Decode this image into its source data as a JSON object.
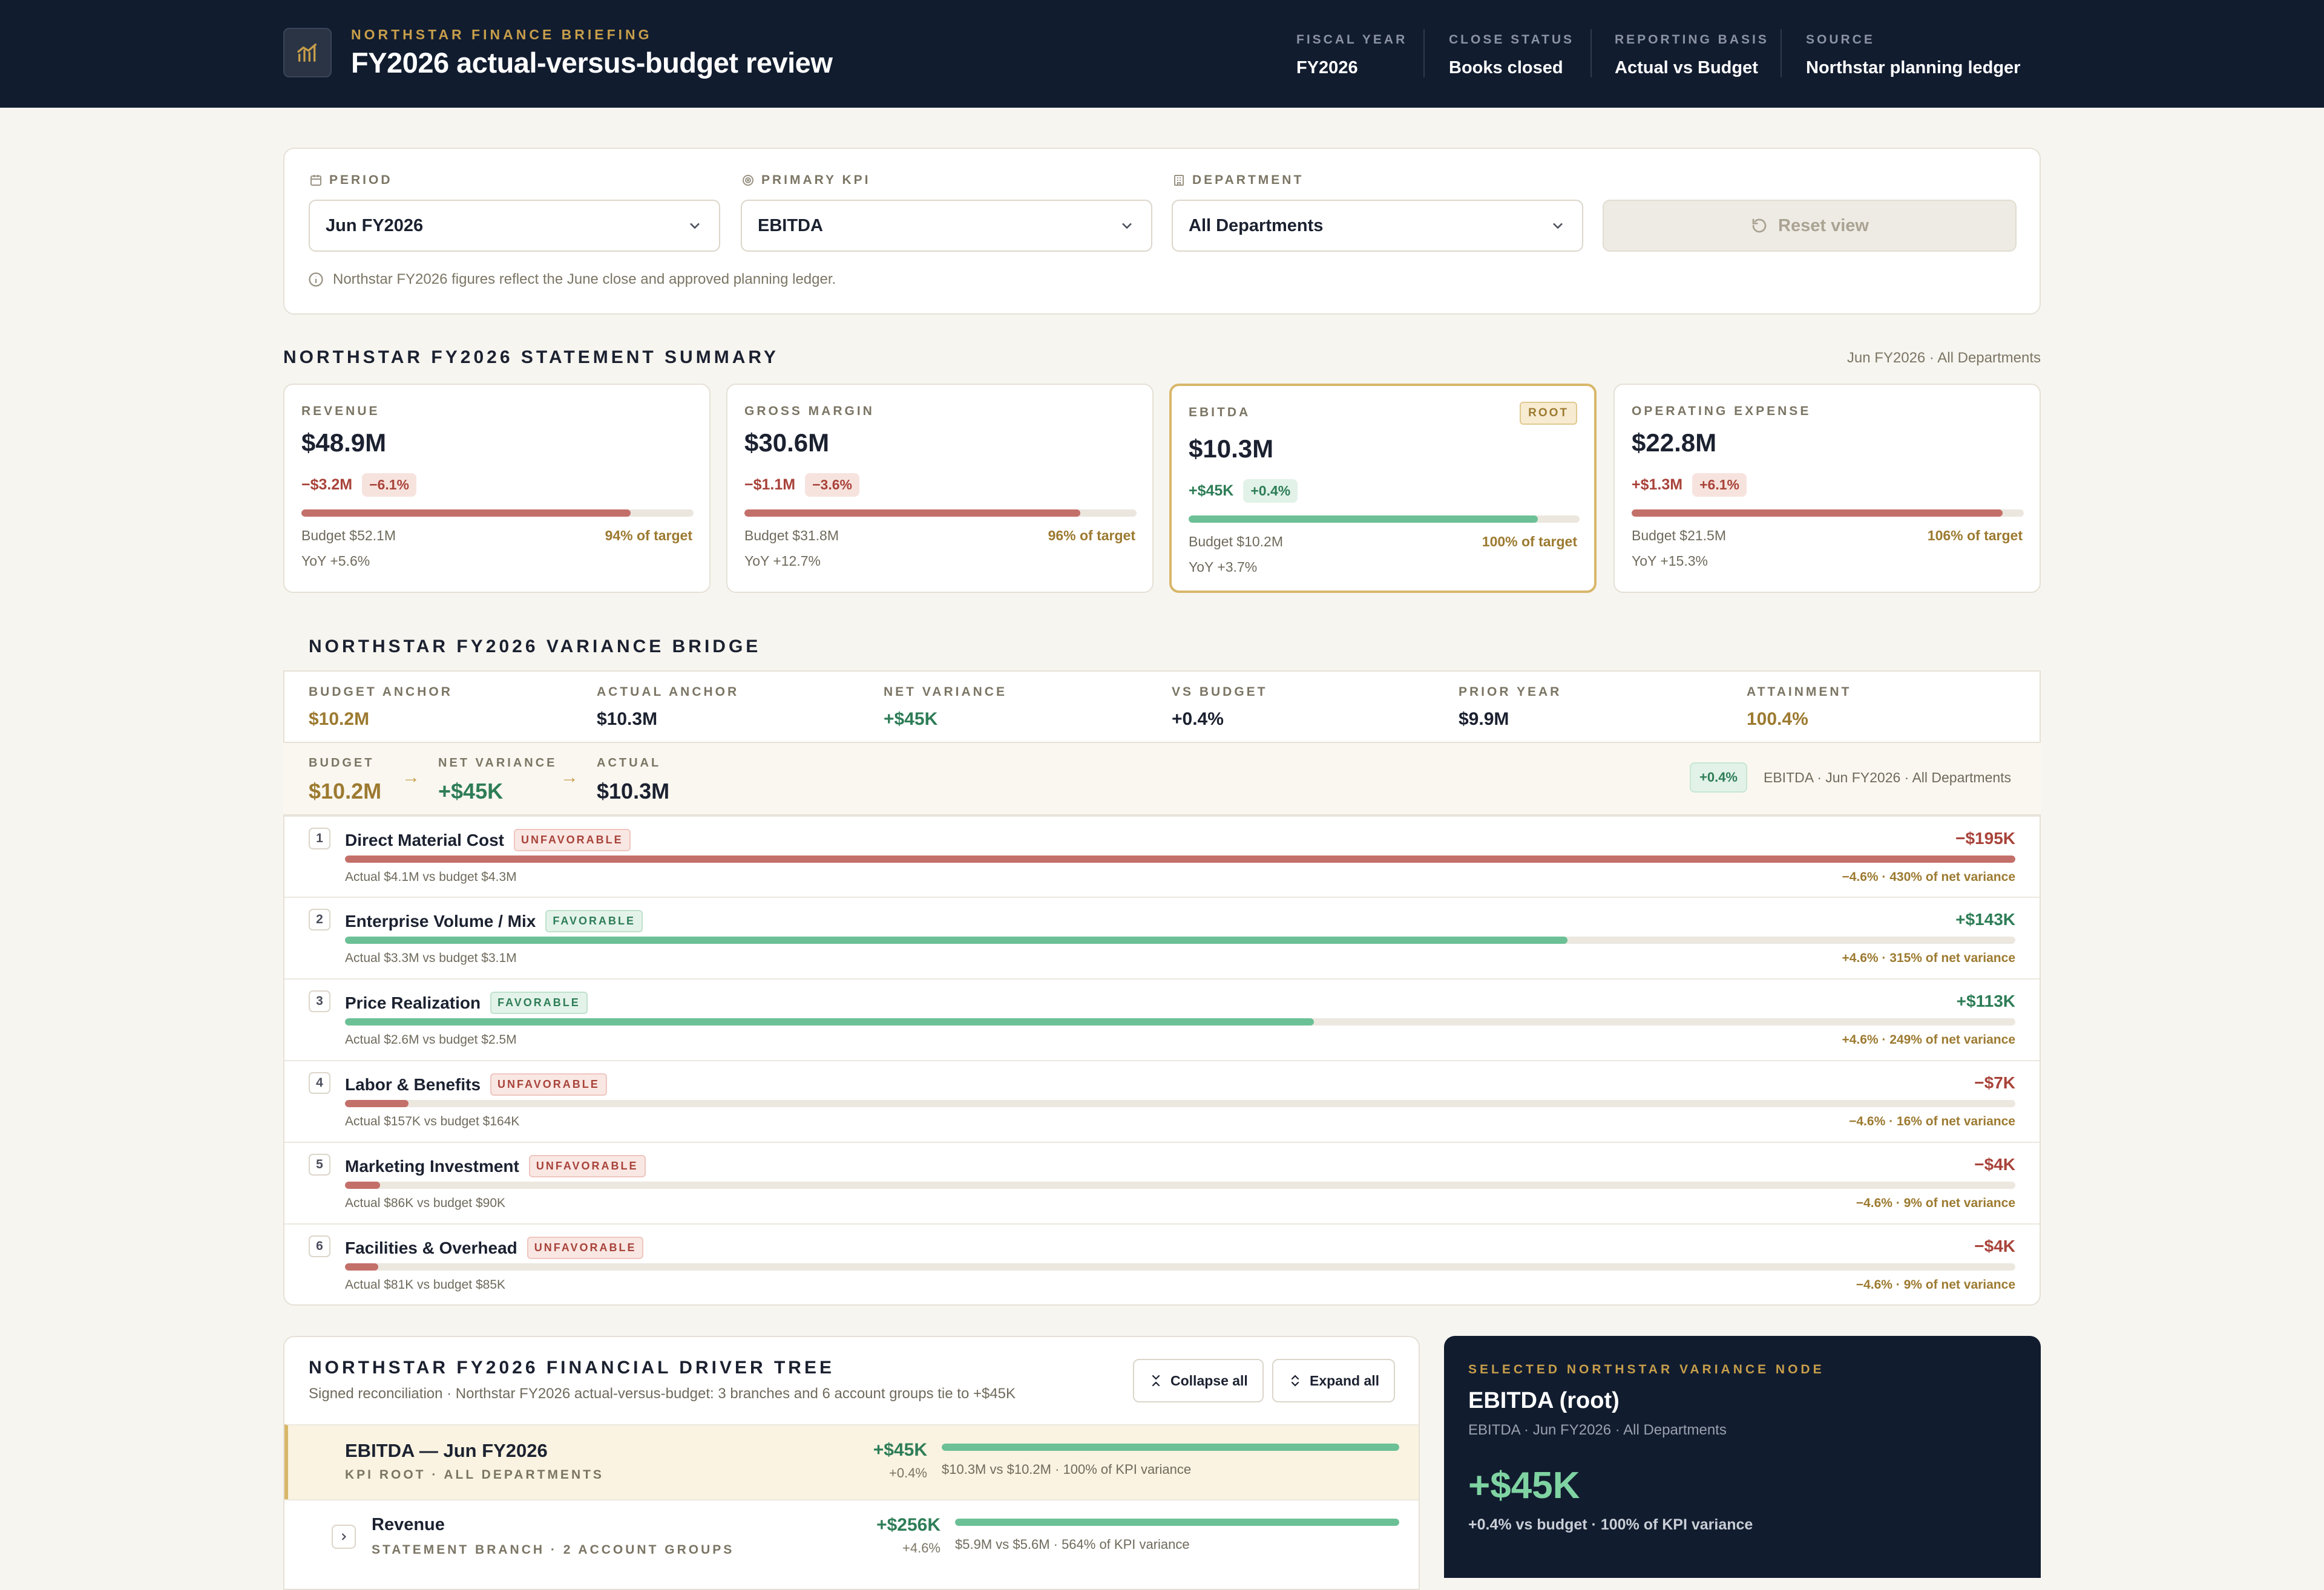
{
  "header": {
    "eyebrow": "NORTHSTAR FINANCE BRIEFING",
    "title": "FY2026 actual-versus-budget review",
    "meta": [
      {
        "label": "FISCAL YEAR",
        "value": "FY2026"
      },
      {
        "label": "CLOSE STATUS",
        "value": "Books closed"
      },
      {
        "label": "REPORTING BASIS",
        "value": "Actual vs Budget"
      },
      {
        "label": "SOURCE",
        "value": "Northstar planning ledger"
      }
    ]
  },
  "filters": {
    "period": {
      "label": "PERIOD",
      "value": "Jun FY2026"
    },
    "kpi": {
      "label": "PRIMARY KPI",
      "value": "EBITDA"
    },
    "department": {
      "label": "DEPARTMENT",
      "value": "All Departments"
    },
    "reset_label": "Reset view",
    "note": "Northstar FY2026 figures reflect the June close and approved planning ledger."
  },
  "summary": {
    "title": "NORTHSTAR FY2026 STATEMENT SUMMARY",
    "context": "Jun FY2026 · All Departments",
    "cards": [
      {
        "label": "REVENUE",
        "value": "$48.9M",
        "delta": "−$3.2M",
        "delta_pct": "−6.1%",
        "direction": "negative",
        "attainment": 0.94,
        "budget": "Budget $52.1M",
        "target": "94% of target",
        "yoy": "YoY +5.6%",
        "selected": false
      },
      {
        "label": "GROSS MARGIN",
        "value": "$30.6M",
        "delta": "−$1.1M",
        "delta_pct": "−3.6%",
        "direction": "negative",
        "attainment": 0.96,
        "budget": "Budget $31.8M",
        "target": "96% of target",
        "yoy": "YoY +12.7%",
        "selected": false
      },
      {
        "label": "EBITDA",
        "value": "$10.3M",
        "delta": "+$45K",
        "delta_pct": "+0.4%",
        "direction": "positive",
        "attainment": 1.0,
        "budget": "Budget $10.2M",
        "target": "100% of target",
        "yoy": "YoY +3.7%",
        "selected": true,
        "badge": "ROOT"
      },
      {
        "label": "OPERATING EXPENSE",
        "value": "$22.8M",
        "delta": "+$1.3M",
        "delta_pct": "+6.1%",
        "direction": "negative",
        "attainment": 1.06,
        "budget": "Budget $21.5M",
        "target": "106% of target",
        "yoy": "YoY +15.3%",
        "selected": false
      }
    ]
  },
  "bridge": {
    "title": "NORTHSTAR FY2026 VARIANCE BRIDGE",
    "anchors": [
      {
        "label": "BUDGET ANCHOR",
        "value": "$10.2M",
        "tone": "gold"
      },
      {
        "label": "ACTUAL ANCHOR",
        "value": "$10.3M",
        "tone": "dark"
      },
      {
        "label": "NET VARIANCE",
        "value": "+$45K",
        "tone": "green"
      },
      {
        "label": "VS BUDGET",
        "value": "+0.4%",
        "tone": "dark"
      },
      {
        "label": "PRIOR YEAR",
        "value": "$9.9M",
        "tone": "dark"
      },
      {
        "label": "ATTAINMENT",
        "value": "100.4%",
        "tone": "gold"
      }
    ],
    "flow": {
      "budget_label": "BUDGET",
      "budget_value": "$10.2M",
      "variance_label": "NET VARIANCE",
      "variance_value": "+$45K",
      "actual_label": "ACTUAL",
      "actual_value": "$10.3M",
      "pill": "+0.4%",
      "context": "EBITDA · Jun FY2026 · All Departments"
    },
    "rows": [
      {
        "rank": "1",
        "name": "Direct Material Cost",
        "tag": "UNFAVORABLE",
        "favorable": false,
        "amount": "−$195K",
        "share": 1.0,
        "detail": "Actual $4.1M vs budget $4.3M",
        "right": "−4.6% · 430% of net variance"
      },
      {
        "rank": "2",
        "name": "Enterprise Volume / Mix",
        "tag": "FAVORABLE",
        "favorable": true,
        "amount": "+$143K",
        "share": 0.732,
        "detail": "Actual $3.3M vs budget $3.1M",
        "right": "+4.6% · 315% of net variance"
      },
      {
        "rank": "3",
        "name": "Price Realization",
        "tag": "FAVORABLE",
        "favorable": true,
        "amount": "+$113K",
        "share": 0.58,
        "detail": "Actual $2.6M vs budget $2.5M",
        "right": "+4.6% · 249% of net variance"
      },
      {
        "rank": "4",
        "name": "Labor & Benefits",
        "tag": "UNFAVORABLE",
        "favorable": false,
        "amount": "−$7K",
        "share": 0.038,
        "detail": "Actual $157K vs budget $164K",
        "right": "−4.6% · 16% of net variance"
      },
      {
        "rank": "5",
        "name": "Marketing Investment",
        "tag": "UNFAVORABLE",
        "favorable": false,
        "amount": "−$4K",
        "share": 0.021,
        "detail": "Actual $86K vs budget $90K",
        "right": "−4.6% · 9% of net variance"
      },
      {
        "rank": "6",
        "name": "Facilities & Overhead",
        "tag": "UNFAVORABLE",
        "favorable": false,
        "amount": "−$4K",
        "share": 0.02,
        "detail": "Actual $81K vs budget $85K",
        "right": "−4.6% · 9% of net variance"
      }
    ]
  },
  "tree": {
    "title": "NORTHSTAR FY2026 FINANCIAL DRIVER TREE",
    "subtitle": "Signed reconciliation · Northstar FY2026 actual-versus-budget: 3 branches and 6 account groups tie to +$45K",
    "collapse_label": "Collapse all",
    "expand_label": "Expand all",
    "root": {
      "name": "EBITDA — Jun FY2026",
      "sub": "KPI ROOT · ALL DEPARTMENTS",
      "amount": "+$45K",
      "pct": "+0.4%",
      "share": 1.0,
      "caption": "$10.3M vs $10.2M · 100% of KPI variance"
    },
    "branch": {
      "name": "Revenue",
      "sub": "STATEMENT BRANCH · 2 ACCOUNT GROUPS",
      "amount": "+$256K",
      "pct": "+4.6%",
      "share": 1.0,
      "caption": "$5.9M vs $5.6M · 564% of KPI variance"
    }
  },
  "selected_node": {
    "eyebrow": "SELECTED NORTHSTAR VARIANCE NODE",
    "title": "EBITDA (root)",
    "context": "EBITDA · Jun FY2026 · All Departments",
    "value": "+$45K",
    "summary": "+0.4% vs budget · 100% of KPI variance"
  },
  "colors": {
    "negative": "#c4706a",
    "positive": "#6cc096",
    "accent": "#c79e4a",
    "navy": "#111c2f"
  }
}
